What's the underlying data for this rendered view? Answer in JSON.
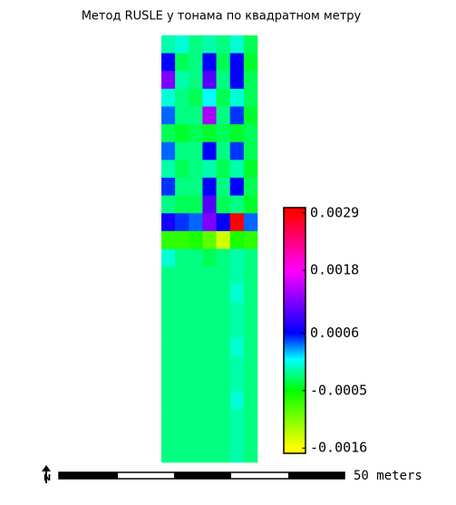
{
  "title": "Метод RUSLE у тонама по квадратном метру",
  "raster": {
    "values": [
      [
        -0.0001,
        0.0,
        -0.0002,
        -0.0001,
        -0.0002,
        0.0,
        -0.0003
      ],
      [
        0.0006,
        -0.0003,
        -0.0002,
        0.0006,
        -0.0003,
        0.0006,
        -0.0004
      ],
      [
        0.0012,
        -0.0001,
        -0.0002,
        0.001,
        -0.0002,
        0.0006,
        -0.0003
      ],
      [
        0.0,
        -0.0002,
        -0.0003,
        0.0001,
        -0.0003,
        0.0,
        -0.0003
      ],
      [
        0.0004,
        -0.0002,
        -0.0002,
        0.0014,
        -0.0002,
        0.0005,
        -0.0004
      ],
      [
        -0.0003,
        -0.0004,
        -0.0003,
        -0.0004,
        -0.0003,
        -0.0004,
        -0.0003
      ],
      [
        0.0004,
        -0.0002,
        -0.0002,
        0.0006,
        -0.0002,
        0.0005,
        -0.0003
      ],
      [
        -0.0001,
        -0.0003,
        -0.0002,
        -0.0001,
        -0.0003,
        -0.0001,
        -0.0004
      ],
      [
        0.0005,
        -0.0002,
        -0.0002,
        0.0006,
        -0.0002,
        0.0006,
        -0.0003
      ],
      [
        -0.0002,
        -0.0003,
        -0.0003,
        0.001,
        -0.0003,
        -0.0002,
        -0.0004
      ],
      [
        0.0007,
        0.0005,
        0.0004,
        0.0012,
        0.0006,
        0.0029,
        0.0004
      ],
      [
        -0.0007,
        -0.0007,
        -0.0006,
        -0.0009,
        -0.0014,
        -0.0006,
        -0.0007
      ],
      [
        0.0,
        -0.0002,
        -0.0002,
        -0.0003,
        -0.0002,
        -0.0001,
        -0.0002
      ],
      [
        -0.0002,
        -0.0002,
        -0.0002,
        -0.0002,
        -0.0002,
        -0.0001,
        -0.0002
      ],
      [
        -0.0002,
        -0.0002,
        -0.0002,
        -0.0002,
        -0.0002,
        0.0,
        -0.0002
      ],
      [
        -0.0002,
        -0.0002,
        -0.0002,
        -0.0002,
        -0.0002,
        -0.0001,
        -0.0002
      ],
      [
        -0.0002,
        -0.0002,
        -0.0002,
        -0.0002,
        -0.0002,
        -0.0001,
        -0.0002
      ],
      [
        -0.0002,
        -0.0002,
        -0.0002,
        -0.0002,
        -0.0002,
        0.0,
        -0.0002
      ],
      [
        -0.0002,
        -0.0002,
        -0.0002,
        -0.0002,
        -0.0002,
        -0.0001,
        -0.0002
      ],
      [
        -0.0002,
        -0.0002,
        -0.0002,
        -0.0002,
        -0.0002,
        -0.0001,
        -0.0002
      ],
      [
        -0.0002,
        -0.0002,
        -0.0002,
        -0.0002,
        -0.0002,
        0.0,
        -0.0002
      ],
      [
        -0.0002,
        -0.0002,
        -0.0002,
        -0.0002,
        -0.0002,
        -0.0001,
        -0.0002
      ],
      [
        -0.0002,
        -0.0002,
        -0.0002,
        -0.0002,
        -0.0002,
        -0.0001,
        -0.0002
      ],
      [
        -0.0002,
        -0.0002,
        -0.0002,
        -0.0002,
        -0.0002,
        -0.0001,
        -0.0002
      ]
    ]
  },
  "colorbar": {
    "lim": [
      -0.0017,
      0.003
    ],
    "ticks": [
      -0.0016,
      -0.0005,
      0.0006,
      0.0018,
      0.0029
    ],
    "color_stops": [
      {
        "value": -0.0016,
        "color": "#ffff00"
      },
      {
        "value": -0.0005,
        "color": "#00ff00"
      },
      {
        "value": 0.0001,
        "color": "#00ffff"
      },
      {
        "value": 0.0006,
        "color": "#0000ff"
      },
      {
        "value": 0.0018,
        "color": "#ff00ff"
      },
      {
        "value": 0.0029,
        "color": "#ff0000"
      }
    ]
  },
  "scale_bar": {
    "label": "50 meters"
  },
  "north_arrow": {
    "label": "N"
  }
}
